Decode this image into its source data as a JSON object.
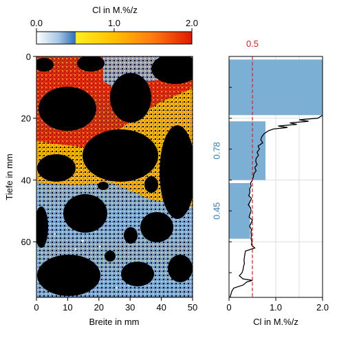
{
  "colorbar": {
    "label": "Cl in M.%/z",
    "ticks": [
      0.0,
      1.0,
      2.0
    ],
    "tick_labels": [
      "0.0",
      "1.0",
      "2.0"
    ],
    "range": [
      0,
      2
    ],
    "colors": [
      "#ffffff",
      "#7fb0dd",
      "#2f6fb7",
      "#ffe600",
      "#ffb000",
      "#ff6a10",
      "#e02000"
    ]
  },
  "chart_data": [
    {
      "type": "heatmap",
      "xlabel": "Breite in mm",
      "ylabel": "Tiefe in mm",
      "xlim": [
        0,
        50
      ],
      "ylim": [
        0,
        78
      ],
      "y_inverted": true,
      "xticks": [
        0,
        10,
        20,
        30,
        40,
        50
      ],
      "yticks": [
        0,
        20,
        40,
        60
      ],
      "zones": [
        {
          "depth_from": 0,
          "depth_to": 20,
          "color_level": "high (red-orange)"
        },
        {
          "depth_from": 20,
          "depth_to": 44,
          "color_level": "medium (yellow-orange)"
        },
        {
          "depth_from": 44,
          "depth_to": 78,
          "color_level": "low (blue-white)"
        }
      ]
    },
    {
      "type": "bar",
      "orientation": "horizontal",
      "xlabel": "Cl in M.%/z",
      "xlim": [
        0,
        2.0
      ],
      "xticks": [
        0,
        1.0,
        2.0
      ],
      "xtick_labels": [
        "0",
        "1.0",
        "2.0"
      ],
      "ylim": [
        0,
        78
      ],
      "y_inverted": true,
      "threshold": {
        "value": 0.5,
        "label": "0.5",
        "color": "#e02020"
      },
      "bars": [
        {
          "depth_from": 1,
          "depth_to": 19,
          "value": 2.0,
          "label": ""
        },
        {
          "depth_from": 21,
          "depth_to": 40,
          "value": 0.78,
          "label": "0.78"
        },
        {
          "depth_from": 41,
          "depth_to": 59,
          "value": 0.45,
          "label": "0.45"
        }
      ],
      "bar_color": "#7bafd4",
      "label_color": "#2f7fb5",
      "profile": {
        "depth": [
          19,
          20,
          20.5,
          21,
          21.5,
          22,
          22.5,
          23,
          23.5,
          24,
          25,
          26,
          27,
          28,
          29,
          30,
          31,
          32,
          33,
          34,
          35,
          36,
          37,
          38,
          39,
          40,
          41,
          42,
          43,
          44,
          45,
          46,
          47,
          48,
          49,
          50,
          51,
          52,
          53,
          54,
          55,
          56,
          57,
          58,
          59,
          60,
          61,
          62,
          63,
          64,
          65,
          66,
          67,
          68,
          69,
          70,
          71,
          72,
          72.5,
          73,
          74,
          75,
          76,
          77,
          78
        ],
        "value": [
          2.0,
          1.9,
          1.5,
          1.7,
          1.3,
          1.45,
          1.05,
          1.25,
          0.95,
          0.85,
          0.75,
          0.7,
          0.68,
          0.72,
          0.62,
          0.65,
          0.6,
          0.63,
          0.58,
          0.57,
          0.6,
          0.55,
          0.58,
          0.53,
          0.52,
          0.5,
          0.46,
          0.47,
          0.44,
          0.45,
          0.42,
          0.48,
          0.45,
          0.41,
          0.46,
          0.47,
          0.45,
          0.43,
          0.5,
          0.47,
          0.44,
          0.48,
          0.47,
          0.48,
          0.47,
          0.49,
          0.48,
          0.55,
          0.35,
          0.34,
          0.33,
          0.32,
          0.33,
          0.31,
          0.3,
          0.28,
          0.22,
          0.3,
          0.5,
          0.38,
          0.3,
          0.1,
          0.06,
          0.04,
          0.02
        ]
      }
    }
  ]
}
